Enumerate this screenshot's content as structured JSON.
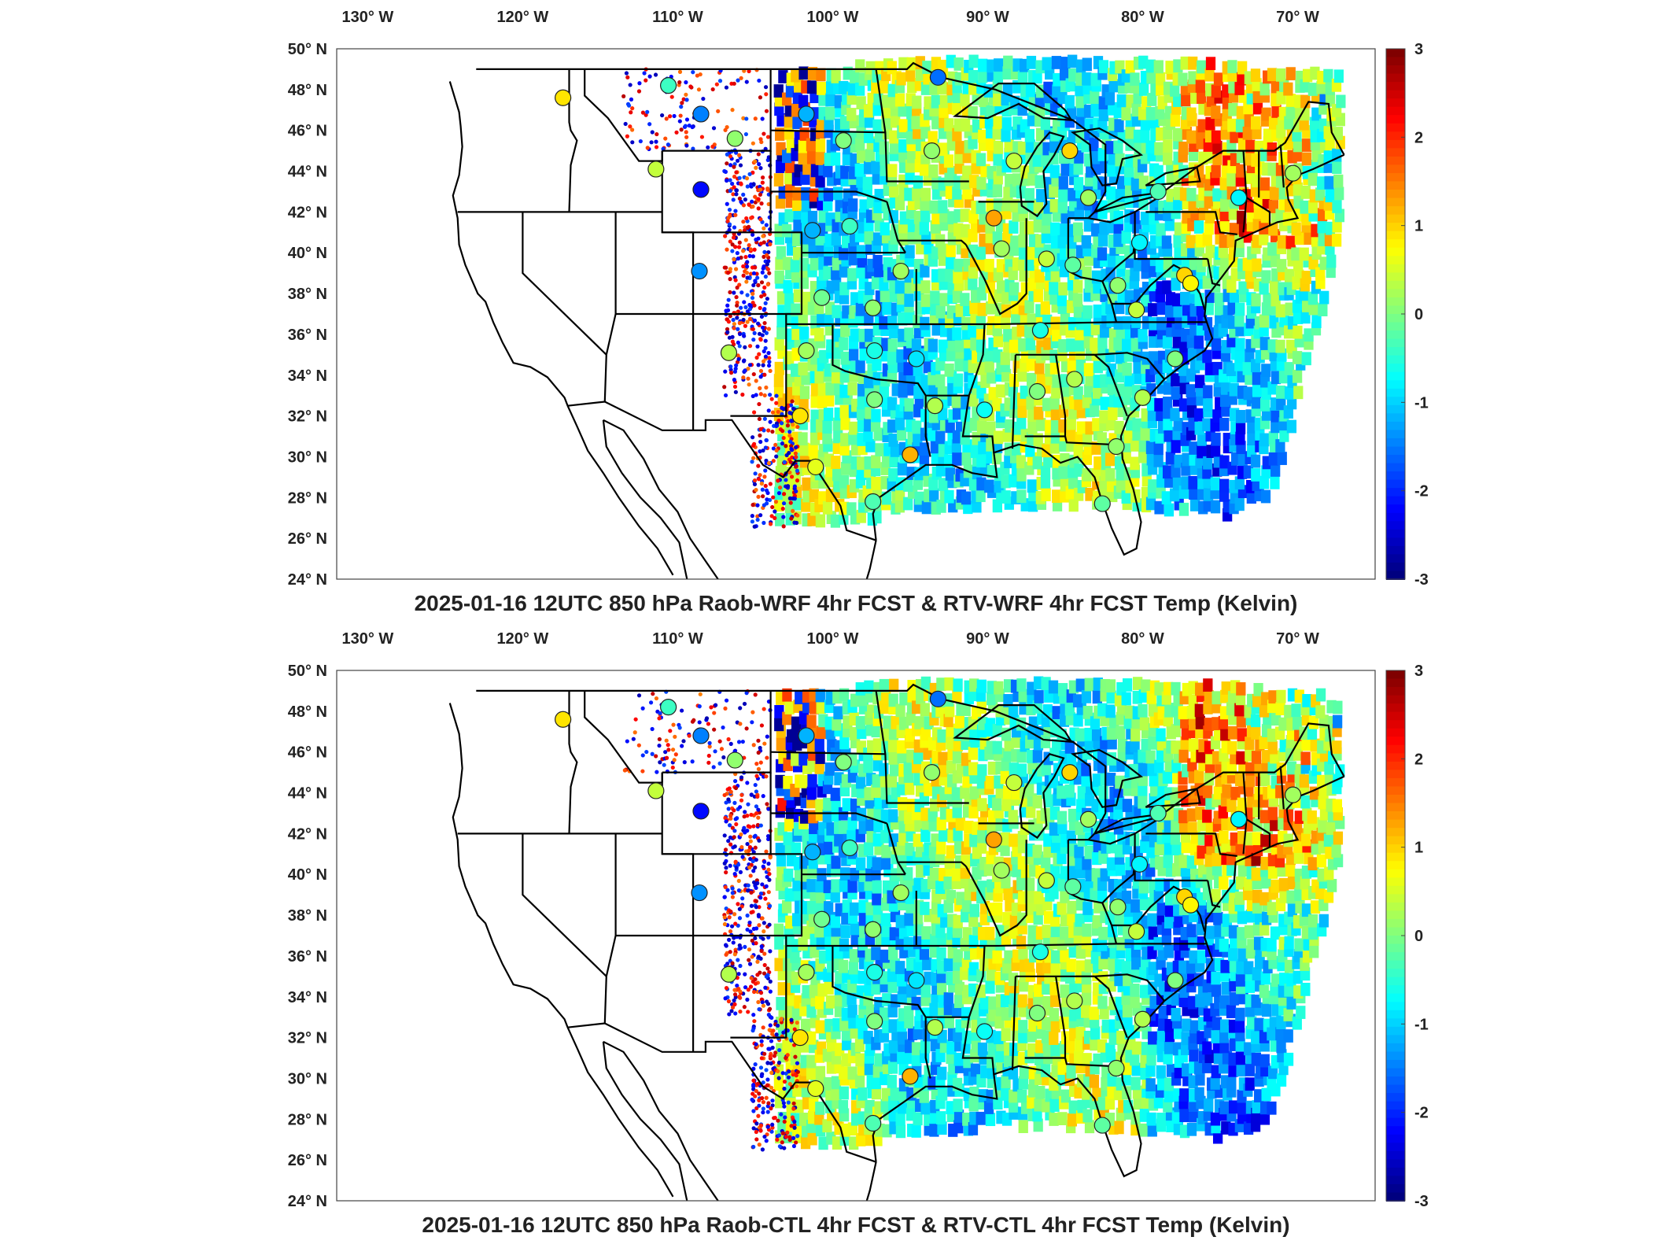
{
  "panels": [
    {
      "title": "2025-01-16 12UTC 850 hPa Raob-WRF 4hr FCST & RTV-WRF 4hr FCST Temp (Kelvin)",
      "seed": 11
    },
    {
      "title": "2025-01-16 12UTC 850 hPa Raob-CTL 4hr FCST & RTV-CTL 4hr FCST Temp (Kelvin)",
      "seed": 29
    }
  ],
  "lon_ticks": [
    "130° W",
    "120° W",
    "110° W",
    "100° W",
    "90° W",
    "80° W",
    "70° W"
  ],
  "lat_ticks": [
    "50° N",
    "48° N",
    "46° N",
    "44° N",
    "42° N",
    "40° N",
    "38° N",
    "36° N",
    "34° N",
    "32° N",
    "30° N",
    "28° N",
    "26° N",
    "24° N"
  ],
  "colorbar": {
    "ticks": [
      "3",
      "2",
      "1",
      "0",
      "-1",
      "-2",
      "-3"
    ],
    "min": -3,
    "max": 3,
    "colormap": "jet"
  },
  "raob_stations": [
    {
      "lon": -117.4,
      "lat": 47.6,
      "value": 0.9
    },
    {
      "lon": -110.6,
      "lat": 48.2,
      "value": -0.4
    },
    {
      "lon": -108.5,
      "lat": 46.8,
      "value": -1.5
    },
    {
      "lon": -106.3,
      "lat": 45.6,
      "value": 0.1
    },
    {
      "lon": -108.5,
      "lat": 43.1,
      "value": -2.2
    },
    {
      "lon": -111.4,
      "lat": 44.1,
      "value": 0.4
    },
    {
      "lon": -108.6,
      "lat": 39.1,
      "value": -1.4
    },
    {
      "lon": -106.7,
      "lat": 35.1,
      "value": 0.3
    },
    {
      "lon": -101.7,
      "lat": 46.8,
      "value": -1.2
    },
    {
      "lon": -99.3,
      "lat": 45.5,
      "value": 0.0
    },
    {
      "lon": -93.2,
      "lat": 48.6,
      "value": -1.6
    },
    {
      "lon": -93.6,
      "lat": 45.0,
      "value": 0.1
    },
    {
      "lon": -101.3,
      "lat": 41.1,
      "value": -1.2
    },
    {
      "lon": -98.9,
      "lat": 41.3,
      "value": -0.4
    },
    {
      "lon": -95.6,
      "lat": 39.1,
      "value": 0.2
    },
    {
      "lon": -100.7,
      "lat": 37.8,
      "value": -0.1
    },
    {
      "lon": -97.4,
      "lat": 37.3,
      "value": 0.1
    },
    {
      "lon": -101.7,
      "lat": 35.2,
      "value": 0.2
    },
    {
      "lon": -97.3,
      "lat": 35.2,
      "value": -0.6
    },
    {
      "lon": -94.6,
      "lat": 34.8,
      "value": -0.9
    },
    {
      "lon": -102.1,
      "lat": 32.0,
      "value": 0.9
    },
    {
      "lon": -97.3,
      "lat": 32.8,
      "value": 0.0
    },
    {
      "lon": -93.4,
      "lat": 32.5,
      "value": 0.3
    },
    {
      "lon": -101.1,
      "lat": 29.5,
      "value": 0.6
    },
    {
      "lon": -95.0,
      "lat": 30.1,
      "value": 1.2
    },
    {
      "lon": -97.4,
      "lat": 27.8,
      "value": -0.3
    },
    {
      "lon": -89.6,
      "lat": 41.7,
      "value": 1.3
    },
    {
      "lon": -89.1,
      "lat": 40.2,
      "value": 0.2
    },
    {
      "lon": -86.2,
      "lat": 39.7,
      "value": 0.4
    },
    {
      "lon": -90.2,
      "lat": 32.3,
      "value": -0.7
    },
    {
      "lon": -86.8,
      "lat": 33.2,
      "value": 0.0
    },
    {
      "lon": -84.4,
      "lat": 33.8,
      "value": 0.3
    },
    {
      "lon": -86.6,
      "lat": 36.2,
      "value": -0.6
    },
    {
      "lon": -84.5,
      "lat": 39.4,
      "value": -0.2
    },
    {
      "lon": -81.6,
      "lat": 38.4,
      "value": 0.1
    },
    {
      "lon": -80.4,
      "lat": 37.2,
      "value": 0.4
    },
    {
      "lon": -80.2,
      "lat": 40.5,
      "value": -0.8
    },
    {
      "lon": -84.7,
      "lat": 45.0,
      "value": 1.0
    },
    {
      "lon": -83.5,
      "lat": 42.7,
      "value": 0.2
    },
    {
      "lon": -88.3,
      "lat": 44.5,
      "value": 0.4
    },
    {
      "lon": -79.0,
      "lat": 43.0,
      "value": -0.3
    },
    {
      "lon": -73.8,
      "lat": 42.7,
      "value": -0.8
    },
    {
      "lon": -77.3,
      "lat": 38.9,
      "value": 1.0
    },
    {
      "lon": -76.9,
      "lat": 38.5,
      "value": 0.8
    },
    {
      "lon": -80.0,
      "lat": 32.9,
      "value": 0.3
    },
    {
      "lon": -77.9,
      "lat": 34.8,
      "value": 0.0
    },
    {
      "lon": -81.7,
      "lat": 30.5,
      "value": 0.1
    },
    {
      "lon": -70.3,
      "lat": 43.9,
      "value": 0.2
    },
    {
      "lon": -82.6,
      "lat": 27.7,
      "value": -0.2
    }
  ]
}
